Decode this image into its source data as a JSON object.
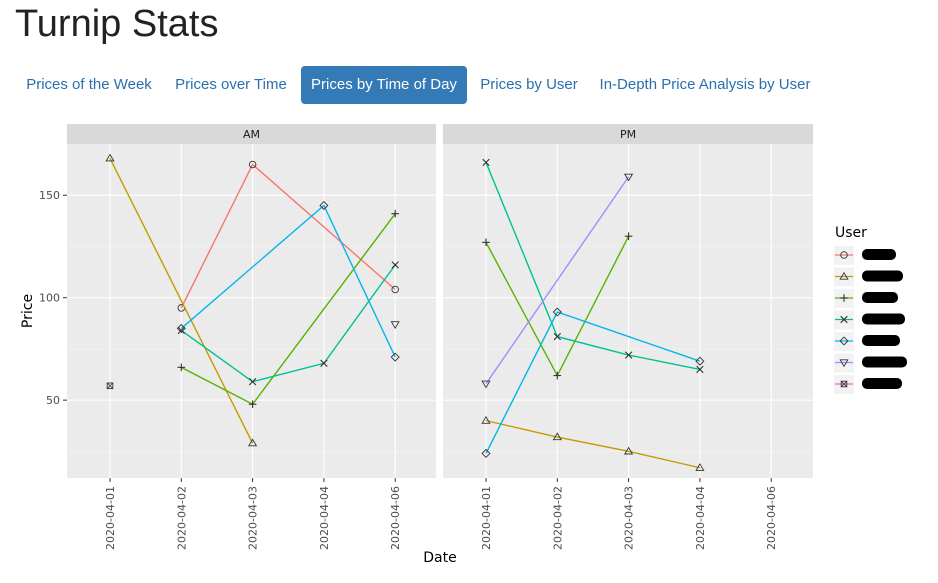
{
  "page": {
    "title": "Turnip Stats"
  },
  "tabs": [
    {
      "label": "Prices of the Week",
      "active": false
    },
    {
      "label": "Prices over Time",
      "active": false
    },
    {
      "label": "Prices by Time of Day",
      "active": true
    },
    {
      "label": "Prices by User",
      "active": false
    },
    {
      "label": "In-Depth Price Analysis by User",
      "active": false
    }
  ],
  "chart_data": {
    "type": "line",
    "xlabel": "Date",
    "ylabel": "Price",
    "x_ticks": [
      "2020-04-01",
      "2020-04-02",
      "2020-04-03",
      "2020-04-04",
      "2020-04-06"
    ],
    "y_ticks": [
      50,
      100,
      150
    ],
    "ylim": [
      12,
      175
    ],
    "panels": [
      "AM",
      "PM"
    ],
    "legend_title": "User",
    "legend_labels_redacted": true,
    "series": [
      {
        "name": "user-1",
        "color": "#f8766d",
        "shape": "circle",
        "AM": {
          "2020-04-02": 95,
          "2020-04-03": 165,
          "2020-04-06": 104
        },
        "PM": {}
      },
      {
        "name": "user-2",
        "color": "#c49a00",
        "shape": "triangle",
        "AM": {
          "2020-04-01": 168,
          "2020-04-03": 29
        },
        "PM": {
          "2020-04-01": 40,
          "2020-04-02": 32,
          "2020-04-03": 25,
          "2020-04-04": 17
        }
      },
      {
        "name": "user-3",
        "color": "#53b400",
        "shape": "plus",
        "AM": {
          "2020-04-02": 66,
          "2020-04-03": 48,
          "2020-04-06": 141
        },
        "PM": {
          "2020-04-01": 127,
          "2020-04-02": 62,
          "2020-04-03": 130
        }
      },
      {
        "name": "user-4",
        "color": "#00c094",
        "shape": "cross",
        "AM": {
          "2020-04-02": 84,
          "2020-04-03": 59,
          "2020-04-04": 68,
          "2020-04-06": 116
        },
        "PM": {
          "2020-04-01": 166,
          "2020-04-02": 81,
          "2020-04-03": 72,
          "2020-04-04": 65
        }
      },
      {
        "name": "user-5",
        "color": "#00b6eb",
        "shape": "diamond",
        "AM": {
          "2020-04-02": 85,
          "2020-04-04": 145,
          "2020-04-06": 71
        },
        "PM": {
          "2020-04-01": 24,
          "2020-04-02": 93,
          "2020-04-04": 69
        }
      },
      {
        "name": "user-6",
        "color": "#a58aff",
        "shape": "triangle-down",
        "AM": {
          "2020-04-06": 87
        },
        "PM": {
          "2020-04-01": 58,
          "2020-04-03": 159
        }
      },
      {
        "name": "user-7",
        "color": "#fb61d7",
        "shape": "square-cross",
        "AM": {
          "2020-04-01": 57
        },
        "PM": {}
      }
    ]
  }
}
